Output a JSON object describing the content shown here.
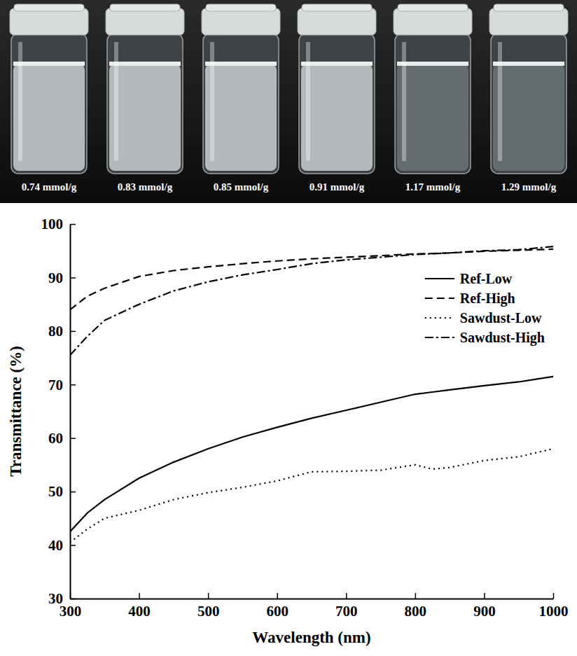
{
  "image": {
    "labels": [
      "0.74 mmol/g",
      "0.83 mmol/g",
      "0.85 mmol/g",
      "0.91 mmol/g",
      "1.17 mmol/g",
      "1.29 mmol/g"
    ]
  },
  "chart_data": {
    "type": "line",
    "x_label": "Wavelength (nm)",
    "y_label": "Transmittance (%)",
    "x": [
      300,
      325,
      350,
      400,
      450,
      500,
      550,
      600,
      650,
      700,
      750,
      800,
      825,
      850,
      900,
      950,
      1000
    ],
    "series": [
      {
        "name": "Ref-Low",
        "color": "#000000",
        "line_style": "solid",
        "values": [
          42.5,
          46,
          48.5,
          52.5,
          55.5,
          58,
          60.2,
          62,
          63.7,
          65.2,
          66.7,
          68.2,
          68.6,
          69,
          69.8,
          70.5,
          71.5
        ]
      },
      {
        "name": "Ref-High",
        "color": "#000000",
        "line_style": "dashed",
        "values": [
          84,
          86.5,
          88,
          90.2,
          91.3,
          92,
          92.6,
          93.1,
          93.5,
          93.8,
          94.1,
          94.4,
          94.5,
          94.6,
          94.9,
          95.1,
          95.3
        ]
      },
      {
        "name": "Sawdust-Low",
        "color": "#000000",
        "line_style": "dotted",
        "values": [
          40.5,
          43,
          45,
          46.5,
          48.5,
          49.8,
          50.8,
          52,
          53.7,
          53.8,
          54,
          55,
          54.2,
          54.5,
          55.8,
          56.5,
          58
        ]
      },
      {
        "name": "Sawdust-High",
        "color": "#000000",
        "line_style": "dashdot",
        "values": [
          75.5,
          79,
          82,
          85,
          87.5,
          89.2,
          90.5,
          91.5,
          92.6,
          93.3,
          93.8,
          94.3,
          94.45,
          94.6,
          95,
          95.2,
          95.8
        ]
      }
    ],
    "xlim": [
      300,
      1000
    ],
    "xticks": [
      300,
      400,
      500,
      600,
      700,
      800,
      900,
      1000
    ],
    "ylim": [
      30,
      100
    ],
    "yticks": [
      30,
      40,
      50,
      60,
      70,
      80,
      90,
      100
    ],
    "grid": false,
    "legend": "upper right"
  }
}
